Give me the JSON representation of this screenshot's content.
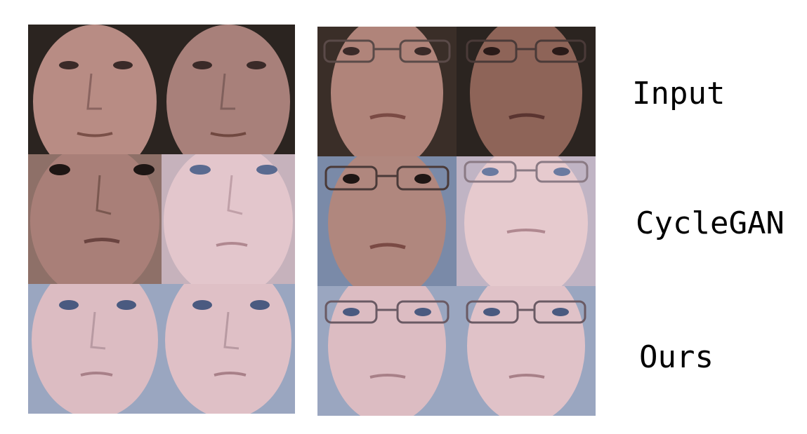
{
  "row_labels": {
    "input": "Input",
    "cyclegan": "CycleGAN",
    "ours": "Ours"
  },
  "grid": {
    "rows": [
      "input",
      "cyclegan",
      "ours"
    ],
    "subjects": [
      {
        "name": "subject-a-no-glasses",
        "glasses": false
      },
      {
        "name": "subject-b-glasses",
        "glasses": true
      }
    ]
  },
  "colors": {
    "skin_input_a": "#b88c84",
    "skin_input_b": "#a87868",
    "skin_cyclegan_dark": "#a97f78",
    "skin_cyclegan_light": "#e3c6cc",
    "skin_ours": "#dcbcc2",
    "background_dark": "#2b2420",
    "background_blue": "#9aa6c0"
  }
}
